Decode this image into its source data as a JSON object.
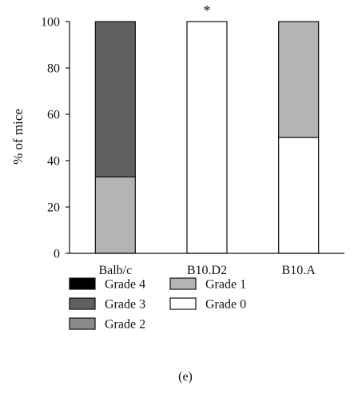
{
  "chart_data": {
    "type": "bar",
    "stacked": true,
    "ylabel": "% of mice",
    "xlabel": "",
    "ylim": [
      0,
      100
    ],
    "yticks": [
      0,
      20,
      40,
      60,
      80,
      100
    ],
    "categories": [
      "Balb/c",
      "B10.D2",
      "B10.A"
    ],
    "series": [
      {
        "name": "Grade 0",
        "color": "#ffffff",
        "values": [
          0,
          100,
          50
        ]
      },
      {
        "name": "Grade 1",
        "color": "#b4b4b4",
        "values": [
          33,
          0,
          50
        ]
      },
      {
        "name": "Grade 2",
        "color": "#8a8a8a",
        "values": [
          0,
          0,
          0
        ]
      },
      {
        "name": "Grade 3",
        "color": "#5f6062",
        "values": [
          67,
          0,
          0
        ]
      },
      {
        "name": "Grade 4",
        "color": "#000000",
        "values": [
          0,
          0,
          0
        ]
      }
    ],
    "annotations": [
      {
        "category": "B10.D2",
        "text": "*"
      }
    ],
    "legend": {
      "placement": "bottom",
      "columns": [
        [
          "Grade 4",
          "Grade 3",
          "Grade 2"
        ],
        [
          "Grade 1",
          "Grade 0"
        ]
      ]
    },
    "panel_label": "(e)",
    "grid": false
  }
}
